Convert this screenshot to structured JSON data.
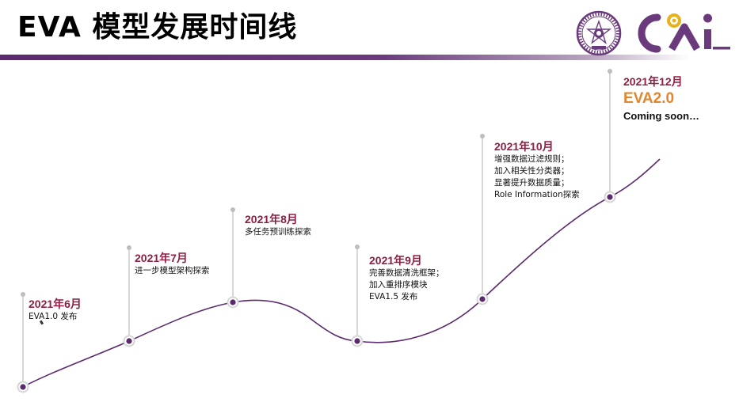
{
  "slide": {
    "title": "EVA 模型发展时间线",
    "logo_right_text": "CoAI",
    "accent_color": "#5b2a6e",
    "date_color": "#8e1f45",
    "highlight_color": "#e2862e"
  },
  "milestones": [
    {
      "date": "2021年6月",
      "lines": [
        "EVA1.0 发布"
      ]
    },
    {
      "date": "2021年7月",
      "lines": [
        "进一步模型架构探索"
      ]
    },
    {
      "date": "2021年8月",
      "lines": [
        "多任务预训练探索"
      ]
    },
    {
      "date": "2021年9月",
      "lines": [
        "完善数据清洗框架；",
        "加入重排序模块",
        "EVA1.5 发布"
      ]
    },
    {
      "date": "2021年10月",
      "lines": [
        "增强数据过滤规则；",
        "加入相关性分类器；",
        "显著提升数据质量；",
        "Role Information探索"
      ]
    },
    {
      "date": "2021年12月",
      "highlight": "EVA2.0",
      "strong": "Coming soon…",
      "lines": []
    }
  ]
}
